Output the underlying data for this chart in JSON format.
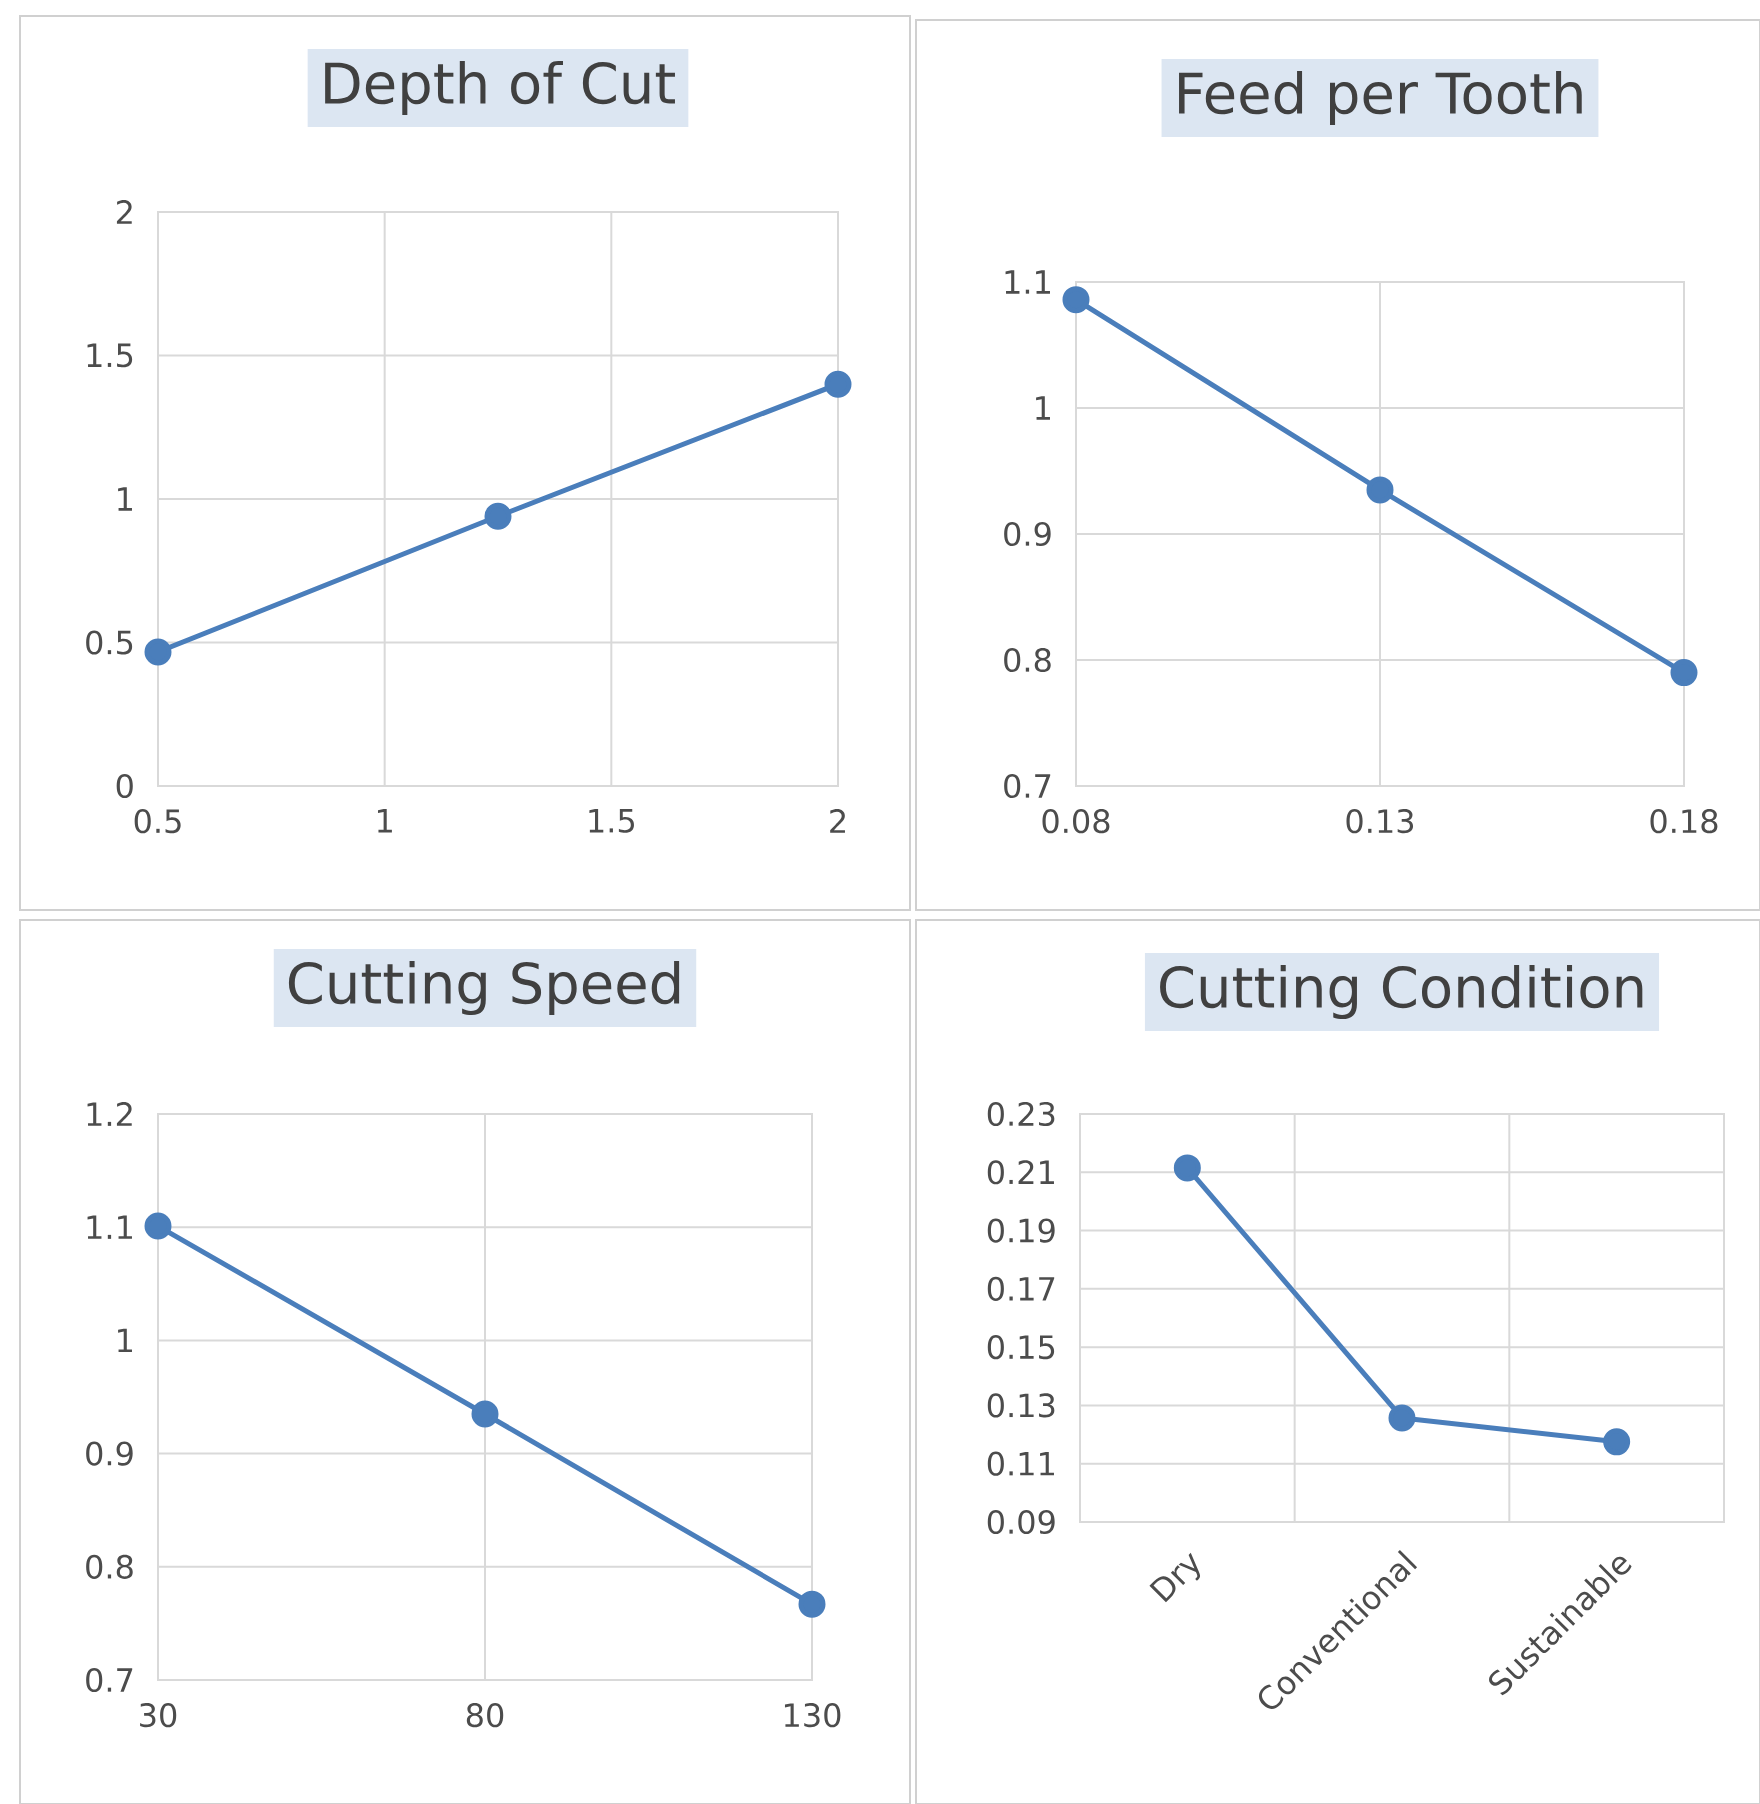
{
  "chart_data": [
    {
      "type": "line",
      "title": "Depth of Cut",
      "x": [
        0.5,
        1.25,
        2
      ],
      "values": [
        0.467,
        0.94,
        1.4
      ],
      "color": "#4a7ebb",
      "xlim": [
        0.5,
        2
      ],
      "ylim": [
        0,
        2
      ],
      "xticks": [
        0.5,
        1,
        1.5,
        2
      ],
      "yticks": [
        0,
        0.5,
        1,
        1.5,
        2
      ],
      "grid": true,
      "marker": "circle"
    },
    {
      "type": "line",
      "title": "Feed per Tooth",
      "x": [
        0.08,
        0.13,
        0.18
      ],
      "values": [
        1.086,
        0.935,
        0.79
      ],
      "color": "#4a7ebb",
      "xlim": [
        0.08,
        0.18
      ],
      "ylim": [
        0.7,
        1.1
      ],
      "xticks": [
        0.08,
        0.13,
        0.18
      ],
      "yticks": [
        0.7,
        0.8,
        0.9,
        1,
        1.1
      ],
      "grid": true,
      "marker": "circle"
    },
    {
      "type": "line",
      "title": "Cutting Speed",
      "x": [
        30,
        80,
        130
      ],
      "values": [
        1.101,
        0.935,
        0.767
      ],
      "color": "#4a7ebb",
      "xlim": [
        30,
        130
      ],
      "ylim": [
        0.7,
        1.2
      ],
      "xticks": [
        30,
        80,
        130
      ],
      "yticks": [
        0.7,
        0.8,
        0.9,
        1,
        1.1,
        1.2
      ],
      "grid": true,
      "marker": "circle"
    },
    {
      "type": "line",
      "title": "Cutting Condition",
      "categories": [
        "Dry",
        "Conventional",
        "Sustainable"
      ],
      "values": [
        0.2115,
        0.1257,
        0.1175
      ],
      "color": "#4a7ebb",
      "ylim": [
        0.09,
        0.23
      ],
      "yticks": [
        0.09,
        0.11,
        0.13,
        0.15,
        0.17,
        0.19,
        0.21,
        0.23
      ],
      "grid": true,
      "marker": "circle"
    }
  ]
}
